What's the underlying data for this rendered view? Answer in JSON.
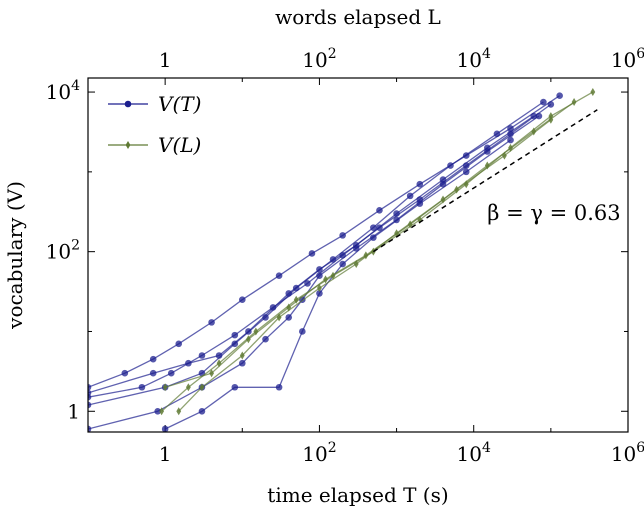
{
  "chart_data": {
    "type": "line",
    "xscale": "log",
    "yscale": "log",
    "xlabel": "time elapsed T (s)",
    "x2label": "words elapsed L",
    "ylabel": "vocabulary (V)",
    "xlim": [
      0.1,
      1000000
    ],
    "ylim": [
      0.55,
      15000
    ],
    "x_ticks": [
      1,
      100,
      10000,
      1000000
    ],
    "x_tick_labels": [
      "1",
      "10^2",
      "10^4",
      "10^6"
    ],
    "y_ticks": [
      1,
      100,
      10000
    ],
    "y_tick_labels": [
      "1",
      "10^2",
      "10^4"
    ],
    "grid": false,
    "legend_placement": "top-left",
    "colors": {
      "V_T": "#1c1f8f",
      "V_L": "#5f7a34",
      "reference": "#000000"
    },
    "series": [
      {
        "name": "V(T)",
        "marker": "circle",
        "color": "#1c1f8f",
        "curves": [
          {
            "x": [
              0.1,
              0.3,
              0.7,
              1.5,
              4,
              10,
              30,
              80,
              200,
              600,
              2000,
              8000,
              30000,
              130000
            ],
            "y": [
              2,
              3,
              4.5,
              7,
              13,
              25,
              50,
              95,
              160,
              330,
              700,
              1600,
              3500,
              9000
            ]
          },
          {
            "x": [
              0.1,
              0.5,
              1.2,
              3,
              8,
              25,
              70,
              200,
              600,
              2000,
              8000,
              30000,
              100000
            ],
            "y": [
              1.5,
              2,
              3,
              5,
              9,
              20,
              40,
              90,
              200,
              450,
              1200,
              3000,
              7000
            ]
          },
          {
            "x": [
              0.1,
              0.7,
              2,
              5,
              12,
              40,
              100,
              300,
              1000,
              4000,
              15000,
              60000
            ],
            "y": [
              1.7,
              3,
              4,
              5,
              10,
              30,
              60,
              120,
              300,
              800,
              2000,
              5000
            ]
          },
          {
            "x": [
              0.1,
              1,
              3,
              8,
              20,
              50,
              150,
              500,
              1500,
              5000,
              20000,
              80000
            ],
            "y": [
              1.2,
              2,
              3,
              7,
              15,
              35,
              80,
              200,
              500,
              1200,
              3000,
              7500
            ]
          },
          {
            "x": [
              0.1,
              0.8,
              3,
              10,
              20,
              40,
              60,
              100,
              300,
              1000,
              4000,
              15000,
              70000
            ],
            "y": [
              0.6,
              1,
              2,
              4,
              8,
              15,
              25,
              50,
              110,
              250,
              700,
              1800,
              5000
            ]
          },
          {
            "x": [
              1,
              3,
              8,
              30,
              60,
              100,
              200,
              500,
              2000,
              8000,
              30000
            ],
            "y": [
              0.6,
              1,
              2,
              2,
              10,
              30,
              70,
              150,
              400,
              1000,
              2500
            ]
          }
        ]
      },
      {
        "name": "V(L)",
        "marker": "diamond",
        "color": "#5f7a34",
        "curves": [
          {
            "x": [
              0.9,
              2,
              5,
              15,
              50,
              150,
              500,
              2000,
              8000,
              30000,
              100000,
              350000
            ],
            "y": [
              1,
              2,
              4,
              10,
              25,
              50,
              100,
              250,
              700,
              2000,
              5000,
              10000
            ]
          },
          {
            "x": [
              1.5,
              3,
              10,
              30,
              100,
              300,
              1000,
              4000,
              15000,
              60000,
              200000
            ],
            "y": [
              1,
              2,
              5,
              15,
              35,
              70,
              170,
              450,
              1200,
              3200,
              7500
            ]
          },
          {
            "x": [
              1,
              4,
              12,
              40,
              120,
              400,
              1500,
              6000,
              25000,
              100000
            ],
            "y": [
              2,
              3,
              8,
              20,
              45,
              90,
              220,
              600,
              1600,
              4500
            ]
          }
        ]
      }
    ],
    "reference_line": {
      "x": [
        500,
        400000
      ],
      "y": [
        100,
        6000
      ],
      "style": "dashed"
    },
    "annotations": [
      {
        "text": "β = γ = 0.63",
        "x": 15000,
        "y": 250
      }
    ]
  }
}
